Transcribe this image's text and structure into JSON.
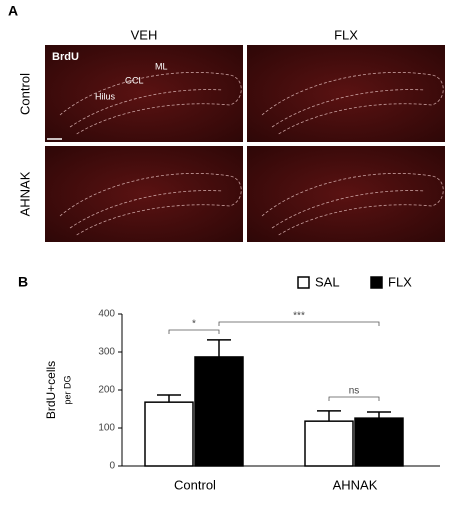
{
  "panel_a": {
    "label": "A",
    "columns": [
      "VEH",
      "FLX"
    ],
    "rows": [
      "Control",
      "AHNAK"
    ],
    "image_labels": [
      "BrdU",
      "ML",
      "GCL",
      "Hilus"
    ]
  },
  "chart_data": {
    "type": "bar",
    "panel_label": "B",
    "y_label": "BrdU+cells",
    "y_label_sub": "per DG",
    "categories": [
      "Control",
      "AHNAK"
    ],
    "series": [
      {
        "name": "SAL",
        "color": "#ffffff",
        "values": [
          168,
          118
        ],
        "errors": [
          19,
          27
        ]
      },
      {
        "name": "FLX",
        "color": "#000000",
        "values": [
          287,
          126
        ],
        "errors": [
          45,
          16
        ]
      }
    ],
    "ylim": [
      0,
      400
    ],
    "yticks": [
      0,
      100,
      200,
      300,
      400
    ],
    "significance": [
      "*",
      "***",
      "ns"
    ],
    "legend": "top-right"
  }
}
